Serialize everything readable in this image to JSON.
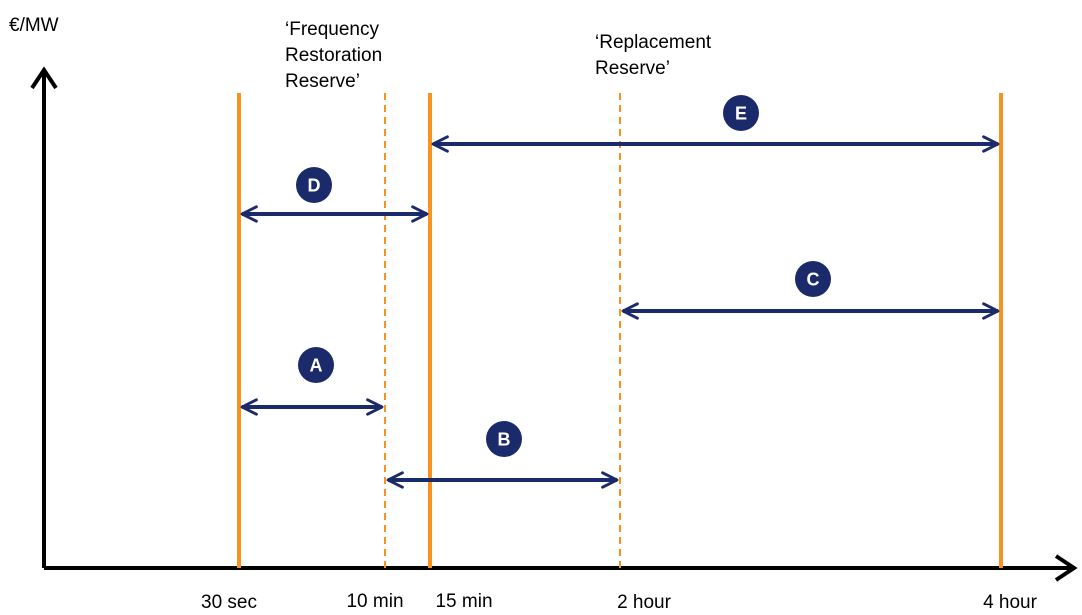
{
  "y_axis_label": "€/MW",
  "annotations": {
    "frr": [
      "‘Frequency",
      "Restoration",
      "Reserve’"
    ],
    "rr": [
      "‘Replacement",
      "Reserve’"
    ]
  },
  "ticks": [
    "30 sec",
    "10 min",
    "15 min",
    "2 hour",
    "4 hour"
  ],
  "ranges": [
    {
      "label": "A",
      "from": "30 sec",
      "to": "10 min"
    },
    {
      "label": "B",
      "from": "10 min",
      "to": "2 hour"
    },
    {
      "label": "C",
      "from": "2 hour",
      "to": "4 hour"
    },
    {
      "label": "D",
      "from": "30 sec",
      "to": "15 min"
    },
    {
      "label": "E",
      "from": "15 min",
      "to": "4 hour"
    }
  ],
  "colors": {
    "axis": "#000000",
    "solid_line": "#F7931E",
    "dashed_line": "#F7931E",
    "arrow": "#1B2A6B",
    "badge": "#1B2A6B"
  }
}
